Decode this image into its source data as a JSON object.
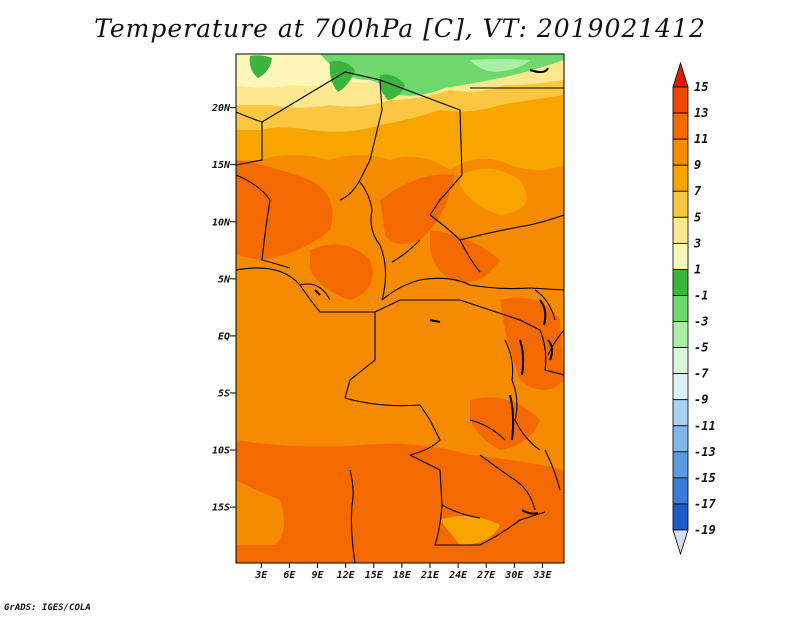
{
  "title": "Temperature at 700hPa [C], VT: 2019021412",
  "credit": "GrADS: IGES/COLA",
  "map": {
    "lat_labels": [
      "20N",
      "15N",
      "10N",
      "5N",
      "EQ",
      "5S",
      "10S",
      "15S"
    ],
    "lon_labels": [
      "3E",
      "6E",
      "9E",
      "12E",
      "15E",
      "18E",
      "21E",
      "24E",
      "27E",
      "30E",
      "33E"
    ],
    "lat_range": [
      -20,
      25
    ],
    "lon_range": [
      0,
      35
    ]
  },
  "colorbar": {
    "levels": [
      "15",
      "13",
      "11",
      "9",
      "7",
      "5",
      "3",
      "1",
      "-1",
      "-3",
      "-5",
      "-7",
      "-9",
      "-11",
      "-13",
      "-15",
      "-17",
      "-19"
    ],
    "colors": [
      "#e01a00",
      "#f04800",
      "#f56a00",
      "#f68a00",
      "#f8a500",
      "#fbc743",
      "#fde890",
      "#fdf6b8",
      "#3bb53b",
      "#6fd86c",
      "#aaefa5",
      "#d8f7d6",
      "#dcf0f8",
      "#a8d2f2",
      "#7fb7ea",
      "#5a9ae0",
      "#3a7cd6",
      "#1c5cc8",
      "#0c3ea8",
      "#0a1f80"
    ],
    "bottom_triangle_color": "#d8dcf4"
  }
}
